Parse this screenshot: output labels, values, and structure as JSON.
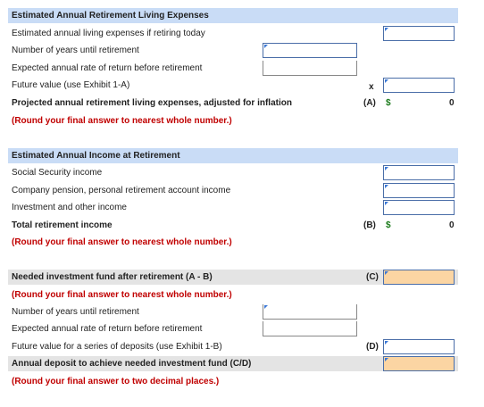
{
  "expenses": {
    "header": "Estimated Annual Retirement Living Expenses",
    "rows": [
      "Estimated annual living expenses if retiring today",
      "Number of years until retirement",
      "Expected annual rate of return before retirement",
      "Future value (use Exhibit 1-A)"
    ],
    "x_mark": "x",
    "projected_label": "Projected annual retirement living expenses, adjusted for inflation",
    "projected_letter": "(A)",
    "projected_currency": "$",
    "projected_value": "0",
    "round_note": "(Round your final answer to nearest whole number.)"
  },
  "income": {
    "header": "Estimated Annual Income at Retirement",
    "rows": [
      "Social Security income",
      "Company pension, personal retirement account income",
      "Investment and other income"
    ],
    "total_label": "Total retirement income",
    "total_letter": "(B)",
    "total_currency": "$",
    "total_value": "0",
    "round_note": "(Round your final answer to nearest whole number.)"
  },
  "needed": {
    "fund_label": "Needed investment fund after retirement (A - B)",
    "fund_letter": "(C)",
    "round_note": "(Round your final answer to nearest whole number.)",
    "rows": [
      "Number of years until retirement",
      "Expected annual rate of return before retirement",
      "Future value for a series of deposits (use Exhibit 1-B)"
    ],
    "fv_letter": "(D)",
    "deposit_label": "Annual deposit to achieve needed investment fund (C/D)",
    "deposit_note": "(Round your final answer to two decimal places.)"
  },
  "colors": {
    "header_bg": "#c9dcf6",
    "grey_bg": "#e4e4e4",
    "input_border": "#4a6ea8",
    "answer_fill": "#fbd5a3",
    "note_red": "#c00000"
  }
}
